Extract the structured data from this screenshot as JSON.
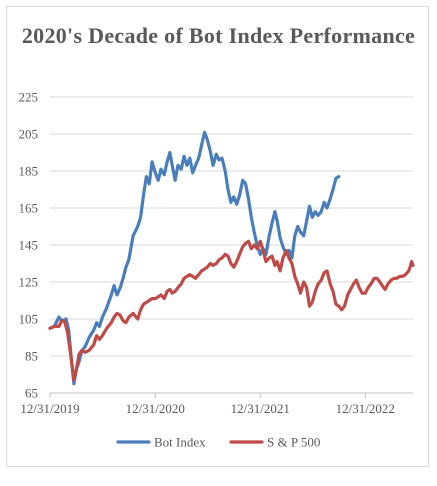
{
  "chart_data": {
    "type": "line",
    "title": "2020's Decade of Bot Index Performance",
    "xlabel": "",
    "ylabel": "",
    "ylim": [
      65,
      225
    ],
    "yticks": [
      65,
      85,
      105,
      125,
      145,
      165,
      185,
      205,
      225
    ],
    "xticks": [
      "12/31/2019",
      "12/31/2020",
      "12/31/2021",
      "12/31/2022"
    ],
    "xlim": [
      "2019-12-31",
      "2023-06-15"
    ],
    "grid": "horizontal",
    "legend": "bottom",
    "series": [
      {
        "name": "Bot Index",
        "color": "#4a7ebb",
        "points": [
          [
            "2019-12-31",
            100
          ],
          [
            "2020-01-15",
            101
          ],
          [
            "2020-01-31",
            106
          ],
          [
            "2020-02-10",
            104
          ],
          [
            "2020-02-25",
            105
          ],
          [
            "2020-03-05",
            99
          ],
          [
            "2020-03-15",
            82
          ],
          [
            "2020-03-23",
            70
          ],
          [
            "2020-04-01",
            78
          ],
          [
            "2020-04-10",
            82
          ],
          [
            "2020-04-20",
            88
          ],
          [
            "2020-05-01",
            90
          ],
          [
            "2020-05-15",
            95
          ],
          [
            "2020-05-31",
            99
          ],
          [
            "2020-06-10",
            103
          ],
          [
            "2020-06-20",
            101
          ],
          [
            "2020-06-30",
            106
          ],
          [
            "2020-07-15",
            111
          ],
          [
            "2020-07-31",
            118
          ],
          [
            "2020-08-10",
            123
          ],
          [
            "2020-08-20",
            118
          ],
          [
            "2020-08-31",
            122
          ],
          [
            "2020-09-10",
            127
          ],
          [
            "2020-09-20",
            133
          ],
          [
            "2020-09-30",
            137
          ],
          [
            "2020-10-15",
            150
          ],
          [
            "2020-10-31",
            155
          ],
          [
            "2020-11-10",
            160
          ],
          [
            "2020-11-20",
            172
          ],
          [
            "2020-11-30",
            182
          ],
          [
            "2020-12-10",
            178
          ],
          [
            "2020-12-20",
            190
          ],
          [
            "2020-12-31",
            184
          ],
          [
            "2021-01-10",
            180
          ],
          [
            "2021-01-20",
            186
          ],
          [
            "2021-01-31",
            183
          ],
          [
            "2021-02-10",
            190
          ],
          [
            "2021-02-20",
            195
          ],
          [
            "2021-02-28",
            188
          ],
          [
            "2021-03-10",
            180
          ],
          [
            "2021-03-20",
            188
          ],
          [
            "2021-03-31",
            186
          ],
          [
            "2021-04-10",
            193
          ],
          [
            "2021-04-20",
            188
          ],
          [
            "2021-04-30",
            192
          ],
          [
            "2021-05-10",
            184
          ],
          [
            "2021-05-20",
            188
          ],
          [
            "2021-05-31",
            192
          ],
          [
            "2021-06-10",
            199
          ],
          [
            "2021-06-20",
            206
          ],
          [
            "2021-06-30",
            202
          ],
          [
            "2021-07-10",
            196
          ],
          [
            "2021-07-20",
            188
          ],
          [
            "2021-07-31",
            194
          ],
          [
            "2021-08-10",
            191
          ],
          [
            "2021-08-20",
            192
          ],
          [
            "2021-08-31",
            185
          ],
          [
            "2021-09-10",
            175
          ],
          [
            "2021-09-20",
            168
          ],
          [
            "2021-09-30",
            171
          ],
          [
            "2021-10-10",
            167
          ],
          [
            "2021-10-20",
            172
          ],
          [
            "2021-10-31",
            180
          ],
          [
            "2021-11-10",
            178
          ],
          [
            "2021-11-20",
            170
          ],
          [
            "2021-11-30",
            160
          ],
          [
            "2021-12-10",
            152
          ],
          [
            "2021-12-20",
            145
          ],
          [
            "2021-12-31",
            140
          ],
          [
            "2022-01-10",
            143
          ],
          [
            "2022-01-20",
            140
          ],
          [
            "2022-01-31",
            150
          ],
          [
            "2022-02-10",
            157
          ],
          [
            "2022-02-20",
            163
          ],
          [
            "2022-02-28",
            158
          ],
          [
            "2022-03-10",
            149
          ],
          [
            "2022-03-20",
            144
          ],
          [
            "2022-03-31",
            140
          ],
          [
            "2022-04-10",
            142
          ],
          [
            "2022-04-20",
            138
          ],
          [
            "2022-04-30",
            150
          ],
          [
            "2022-05-10",
            155
          ],
          [
            "2022-05-20",
            152
          ],
          [
            "2022-05-31",
            150
          ],
          [
            "2022-06-10",
            158
          ],
          [
            "2022-06-20",
            166
          ],
          [
            "2022-06-30",
            160
          ],
          [
            "2022-07-10",
            163
          ],
          [
            "2022-07-20",
            161
          ],
          [
            "2022-07-31",
            163
          ],
          [
            "2022-08-10",
            168
          ],
          [
            "2022-08-20",
            165
          ],
          [
            "2022-08-31",
            170
          ],
          [
            "2022-09-10",
            175
          ],
          [
            "2022-09-20",
            181
          ],
          [
            "2022-09-30",
            182
          ]
        ]
      },
      {
        "name": "S & P 500",
        "color": "#be4b48",
        "points": [
          [
            "2019-12-31",
            100
          ],
          [
            "2020-01-15",
            101
          ],
          [
            "2020-01-31",
            101
          ],
          [
            "2020-02-10",
            104
          ],
          [
            "2020-02-19",
            104
          ],
          [
            "2020-03-01",
            98
          ],
          [
            "2020-03-10",
            88
          ],
          [
            "2020-03-23",
            72
          ],
          [
            "2020-04-01",
            78
          ],
          [
            "2020-04-10",
            86
          ],
          [
            "2020-04-20",
            88
          ],
          [
            "2020-05-01",
            87
          ],
          [
            "2020-05-15",
            88
          ],
          [
            "2020-05-31",
            91
          ],
          [
            "2020-06-10",
            96
          ],
          [
            "2020-06-20",
            94
          ],
          [
            "2020-06-30",
            96
          ],
          [
            "2020-07-15",
            100
          ],
          [
            "2020-07-31",
            103
          ],
          [
            "2020-08-10",
            106
          ],
          [
            "2020-08-20",
            108
          ],
          [
            "2020-08-31",
            107
          ],
          [
            "2020-09-10",
            104
          ],
          [
            "2020-09-20",
            103
          ],
          [
            "2020-09-30",
            106
          ],
          [
            "2020-10-15",
            108
          ],
          [
            "2020-10-31",
            105
          ],
          [
            "2020-11-10",
            110
          ],
          [
            "2020-11-20",
            113
          ],
          [
            "2020-11-30",
            114
          ],
          [
            "2020-12-10",
            115
          ],
          [
            "2020-12-20",
            116
          ],
          [
            "2020-12-31",
            116
          ],
          [
            "2021-01-10",
            117
          ],
          [
            "2021-01-20",
            118
          ],
          [
            "2021-01-31",
            116
          ],
          [
            "2021-02-10",
            120
          ],
          [
            "2021-02-20",
            121
          ],
          [
            "2021-02-28",
            119
          ],
          [
            "2021-03-10",
            120
          ],
          [
            "2021-03-20",
            122
          ],
          [
            "2021-03-31",
            124
          ],
          [
            "2021-04-10",
            127
          ],
          [
            "2021-04-20",
            128
          ],
          [
            "2021-04-30",
            129
          ],
          [
            "2021-05-10",
            128
          ],
          [
            "2021-05-20",
            127
          ],
          [
            "2021-05-31",
            129
          ],
          [
            "2021-06-10",
            131
          ],
          [
            "2021-06-20",
            132
          ],
          [
            "2021-06-30",
            133
          ],
          [
            "2021-07-10",
            135
          ],
          [
            "2021-07-20",
            134
          ],
          [
            "2021-07-31",
            135
          ],
          [
            "2021-08-10",
            137
          ],
          [
            "2021-08-20",
            138
          ],
          [
            "2021-08-31",
            140
          ],
          [
            "2021-09-10",
            139
          ],
          [
            "2021-09-20",
            135
          ],
          [
            "2021-09-30",
            133
          ],
          [
            "2021-10-10",
            136
          ],
          [
            "2021-10-20",
            140
          ],
          [
            "2021-10-31",
            144
          ],
          [
            "2021-11-10",
            146
          ],
          [
            "2021-11-20",
            147
          ],
          [
            "2021-11-30",
            143
          ],
          [
            "2021-12-10",
            145
          ],
          [
            "2021-12-20",
            143
          ],
          [
            "2021-12-31",
            147
          ],
          [
            "2022-01-10",
            142
          ],
          [
            "2022-01-20",
            136
          ],
          [
            "2022-01-31",
            138
          ],
          [
            "2022-02-10",
            139
          ],
          [
            "2022-02-20",
            134
          ],
          [
            "2022-02-28",
            136
          ],
          [
            "2022-03-10",
            131
          ],
          [
            "2022-03-20",
            138
          ],
          [
            "2022-03-31",
            142
          ],
          [
            "2022-04-10",
            138
          ],
          [
            "2022-04-20",
            135
          ],
          [
            "2022-04-30",
            128
          ],
          [
            "2022-05-10",
            124
          ],
          [
            "2022-05-20",
            119
          ],
          [
            "2022-05-31",
            125
          ],
          [
            "2022-06-10",
            122
          ],
          [
            "2022-06-20",
            112
          ],
          [
            "2022-06-30",
            114
          ],
          [
            "2022-07-10",
            120
          ],
          [
            "2022-07-20",
            124
          ],
          [
            "2022-07-31",
            126
          ],
          [
            "2022-08-10",
            130
          ],
          [
            "2022-08-20",
            131
          ],
          [
            "2022-08-31",
            124
          ],
          [
            "2022-09-10",
            120
          ],
          [
            "2022-09-20",
            113
          ],
          [
            "2022-09-30",
            112
          ],
          [
            "2022-10-10",
            110
          ],
          [
            "2022-10-20",
            112
          ],
          [
            "2022-10-31",
            118
          ],
          [
            "2022-11-10",
            121
          ],
          [
            "2022-11-20",
            124
          ],
          [
            "2022-11-30",
            126
          ],
          [
            "2022-12-10",
            122
          ],
          [
            "2022-12-20",
            119
          ],
          [
            "2022-12-31",
            119
          ],
          [
            "2023-01-10",
            122
          ],
          [
            "2023-01-20",
            124
          ],
          [
            "2023-01-31",
            127
          ],
          [
            "2023-02-10",
            127
          ],
          [
            "2023-02-20",
            125
          ],
          [
            "2023-02-28",
            123
          ],
          [
            "2023-03-10",
            121
          ],
          [
            "2023-03-20",
            124
          ],
          [
            "2023-03-31",
            126
          ],
          [
            "2023-04-10",
            127
          ],
          [
            "2023-04-20",
            127
          ],
          [
            "2023-04-30",
            128
          ],
          [
            "2023-05-10",
            128
          ],
          [
            "2023-05-20",
            129
          ],
          [
            "2023-05-31",
            131
          ],
          [
            "2023-06-05",
            133
          ],
          [
            "2023-06-10",
            136
          ],
          [
            "2023-06-15",
            134
          ]
        ]
      }
    ]
  }
}
